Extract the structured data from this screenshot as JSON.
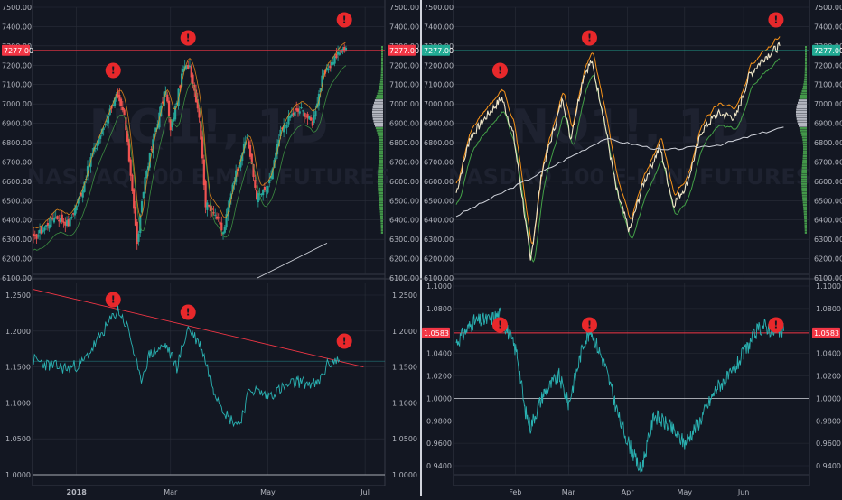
{
  "colors": {
    "background": "#131722",
    "grid": "#2a2e39",
    "axis_text": "#b2b5be",
    "bull_candle": "#26a69a",
    "bear_candle": "#ef5350",
    "resistance_red": "#f23645",
    "neutral_line": "#d1d4dc",
    "ratio_line": "#2ab2b2",
    "price_line_green": "#22ab94",
    "volume_green": "#4caf50",
    "ma_orange": "#f7931a",
    "ma_green": "#43a047",
    "warning_red": "#e8282b"
  },
  "watermark": {
    "symbol": "NQ1!, 1D",
    "name": "NASDAQ 100 E-MINI FUTURES"
  },
  "left_panel": {
    "price_axis": [
      "7500.00",
      "7400.00",
      "7300.00",
      "7277.00",
      "7200.00",
      "7100.00",
      "7000.00",
      "6900.00",
      "6800.00",
      "6700.00",
      "6600.00",
      "6500.00",
      "6400.00",
      "6300.00",
      "6200.00",
      "6100.00"
    ],
    "price_marker": "7277.00",
    "ratio_axis": [
      "1.2500",
      "1.2000",
      "1.1500",
      "1.1000",
      "1.0500",
      "1.0000"
    ],
    "time_axis": [
      "2018",
      "Mar",
      "May",
      "Jul"
    ]
  },
  "right_panel": {
    "price_axis": [
      "7500.00",
      "7400.00",
      "7300.00",
      "7277.00",
      "7200.00",
      "7100.00",
      "7000.00",
      "6900.00",
      "6800.00",
      "6700.00",
      "6600.00",
      "6500.00",
      "6400.00",
      "6300.00",
      "6200.00",
      "6100.00"
    ],
    "price_marker": "7277.00",
    "ratio_axis": [
      "1.1000",
      "1.0800",
      "1.0583",
      "1.0400",
      "1.0200",
      "1.0000",
      "0.9800",
      "0.9600",
      "0.9400"
    ],
    "ratio_marker": "1.0583",
    "time_axis": [
      "Feb",
      "Mar",
      "Apr",
      "May",
      "Jun"
    ]
  },
  "chart_data": [
    {
      "type": "candlestick",
      "panel": "left-price",
      "symbol": "NQ1!, 1D",
      "ylim": [
        6100,
        7500
      ],
      "x_ticks": [
        "2018",
        "Mar",
        "May",
        "Jul"
      ],
      "resistance_level": 7277,
      "close_path": [
        [
          "2017-12-05",
          6300
        ],
        [
          "2017-12-12",
          6360
        ],
        [
          "2017-12-18",
          6420
        ],
        [
          "2017-12-27",
          6380
        ],
        [
          "2018-01-04",
          6540
        ],
        [
          "2018-01-10",
          6720
        ],
        [
          "2018-01-17",
          6860
        ],
        [
          "2018-01-23",
          6990
        ],
        [
          "2018-01-26",
          7040
        ],
        [
          "2018-01-31",
          6940
        ],
        [
          "2018-02-05",
          6560
        ],
        [
          "2018-02-08",
          6270
        ],
        [
          "2018-02-13",
          6620
        ],
        [
          "2018-02-20",
          6880
        ],
        [
          "2018-02-26",
          7080
        ],
        [
          "2018-03-01",
          6860
        ],
        [
          "2018-03-09",
          7180
        ],
        [
          "2018-03-13",
          7200
        ],
        [
          "2018-03-19",
          6940
        ],
        [
          "2018-03-23",
          6480
        ],
        [
          "2018-03-28",
          6450
        ],
        [
          "2018-04-03",
          6330
        ],
        [
          "2018-04-09",
          6590
        ],
        [
          "2018-04-13",
          6700
        ],
        [
          "2018-04-18",
          6830
        ],
        [
          "2018-04-24",
          6520
        ],
        [
          "2018-05-01",
          6560
        ],
        [
          "2018-05-09",
          6850
        ],
        [
          "2018-05-15",
          6940
        ],
        [
          "2018-05-22",
          6970
        ],
        [
          "2018-05-29",
          6900
        ],
        [
          "2018-06-04",
          7130
        ],
        [
          "2018-06-12",
          7240
        ],
        [
          "2018-06-19",
          7290
        ]
      ],
      "warnings": [
        "2018-01-24",
        "2018-03-12",
        "2018-06-18"
      ]
    },
    {
      "type": "line",
      "panel": "left-ratio",
      "ylim": [
        0.99,
        1.27
      ],
      "reference_levels": [
        1.0,
        1.158
      ],
      "trendline": [
        [
          "2017-12-05",
          1.258
        ],
        [
          "2018-06-30",
          1.15
        ]
      ],
      "points": [
        [
          "2017-12-05",
          1.16
        ],
        [
          "2017-12-15",
          1.152
        ],
        [
          "2017-12-27",
          1.148
        ],
        [
          "2018-01-05",
          1.156
        ],
        [
          "2018-01-15",
          1.19
        ],
        [
          "2018-01-24",
          1.22
        ],
        [
          "2018-01-27",
          1.23
        ],
        [
          "2018-02-03",
          1.2
        ],
        [
          "2018-02-10",
          1.13
        ],
        [
          "2018-02-16",
          1.168
        ],
        [
          "2018-02-26",
          1.18
        ],
        [
          "2018-03-05",
          1.15
        ],
        [
          "2018-03-12",
          1.205
        ],
        [
          "2018-03-20",
          1.18
        ],
        [
          "2018-03-28",
          1.12
        ],
        [
          "2018-04-06",
          1.08
        ],
        [
          "2018-04-13",
          1.07
        ],
        [
          "2018-04-20",
          1.12
        ],
        [
          "2018-05-01",
          1.11
        ],
        [
          "2018-05-10",
          1.12
        ],
        [
          "2018-05-20",
          1.13
        ],
        [
          "2018-06-01",
          1.125
        ],
        [
          "2018-06-08",
          1.155
        ],
        [
          "2018-06-15",
          1.16
        ]
      ],
      "warnings": [
        "2018-01-24",
        "2018-03-12",
        "2018-06-18"
      ]
    },
    {
      "type": "line",
      "panel": "right-price",
      "symbol": "NQ1!, 1D",
      "ylim": [
        6100,
        7500
      ],
      "x_ticks": [
        "Feb",
        "Mar",
        "Apr",
        "May",
        "Jun"
      ],
      "resistance_level": 7277,
      "series": [
        {
          "values": [
            [
              "2018-01-01",
              6540
            ],
            [
              "2018-01-08",
              6820
            ],
            [
              "2018-01-18",
              6950
            ],
            [
              "2018-01-25",
              7030
            ],
            [
              "2018-01-31",
              6840
            ],
            [
              "2018-02-05",
              6500
            ],
            [
              "2018-02-09",
              6180
            ],
            [
              "2018-02-15",
              6650
            ],
            [
              "2018-02-26",
              7030
            ],
            [
              "2018-03-02",
              6820
            ],
            [
              "2018-03-09",
              7150
            ],
            [
              "2018-03-13",
              7220
            ],
            [
              "2018-03-19",
              6960
            ],
            [
              "2018-03-26",
              6560
            ],
            [
              "2018-04-02",
              6340
            ],
            [
              "2018-04-09",
              6580
            ],
            [
              "2018-04-18",
              6780
            ],
            [
              "2018-04-25",
              6480
            ],
            [
              "2018-05-02",
              6580
            ],
            [
              "2018-05-10",
              6860
            ],
            [
              "2018-05-18",
              6950
            ],
            [
              "2018-05-28",
              6930
            ],
            [
              "2018-06-04",
              7150
            ],
            [
              "2018-06-12",
              7240
            ],
            [
              "2018-06-20",
              7300
            ]
          ]
        },
        {
          "values": [
            [
              "2018-01-01",
              6420
            ],
            [
              "2018-02-06",
              6600
            ],
            [
              "2018-03-20",
              6820
            ],
            [
              "2018-04-20",
              6760
            ],
            [
              "2018-05-20",
              6790
            ],
            [
              "2018-06-22",
              6880
            ]
          ]
        }
      ],
      "warnings": [
        "2018-01-24",
        "2018-03-12",
        "2018-06-18"
      ]
    },
    {
      "type": "line",
      "panel": "right-ratio",
      "ylim": [
        0.925,
        1.105
      ],
      "reference_levels": [
        1.0,
        1.0583
      ],
      "points": [
        [
          "2018-01-01",
          1.05
        ],
        [
          "2018-01-10",
          1.068
        ],
        [
          "2018-01-18",
          1.07
        ],
        [
          "2018-01-24",
          1.075
        ],
        [
          "2018-01-28",
          1.06
        ],
        [
          "2018-02-02",
          1.04
        ],
        [
          "2018-02-06",
          0.99
        ],
        [
          "2018-02-09",
          0.975
        ],
        [
          "2018-02-16",
          1.005
        ],
        [
          "2018-02-24",
          1.02
        ],
        [
          "2018-03-01",
          0.995
        ],
        [
          "2018-03-09",
          1.05
        ],
        [
          "2018-03-13",
          1.06
        ],
        [
          "2018-03-20",
          1.03
        ],
        [
          "2018-03-28",
          0.98
        ],
        [
          "2018-04-04",
          0.95
        ],
        [
          "2018-04-08",
          0.935
        ],
        [
          "2018-04-15",
          0.985
        ],
        [
          "2018-04-23",
          0.975
        ],
        [
          "2018-05-01",
          0.96
        ],
        [
          "2018-05-09",
          0.98
        ],
        [
          "2018-05-18",
          1.01
        ],
        [
          "2018-05-25",
          1.02
        ],
        [
          "2018-06-01",
          1.04
        ],
        [
          "2018-06-08",
          1.06
        ],
        [
          "2018-06-12",
          1.065
        ],
        [
          "2018-06-18",
          1.058
        ],
        [
          "2018-06-22",
          1.06
        ]
      ],
      "warnings": [
        "2018-01-24",
        "2018-03-12",
        "2018-06-18"
      ]
    }
  ]
}
